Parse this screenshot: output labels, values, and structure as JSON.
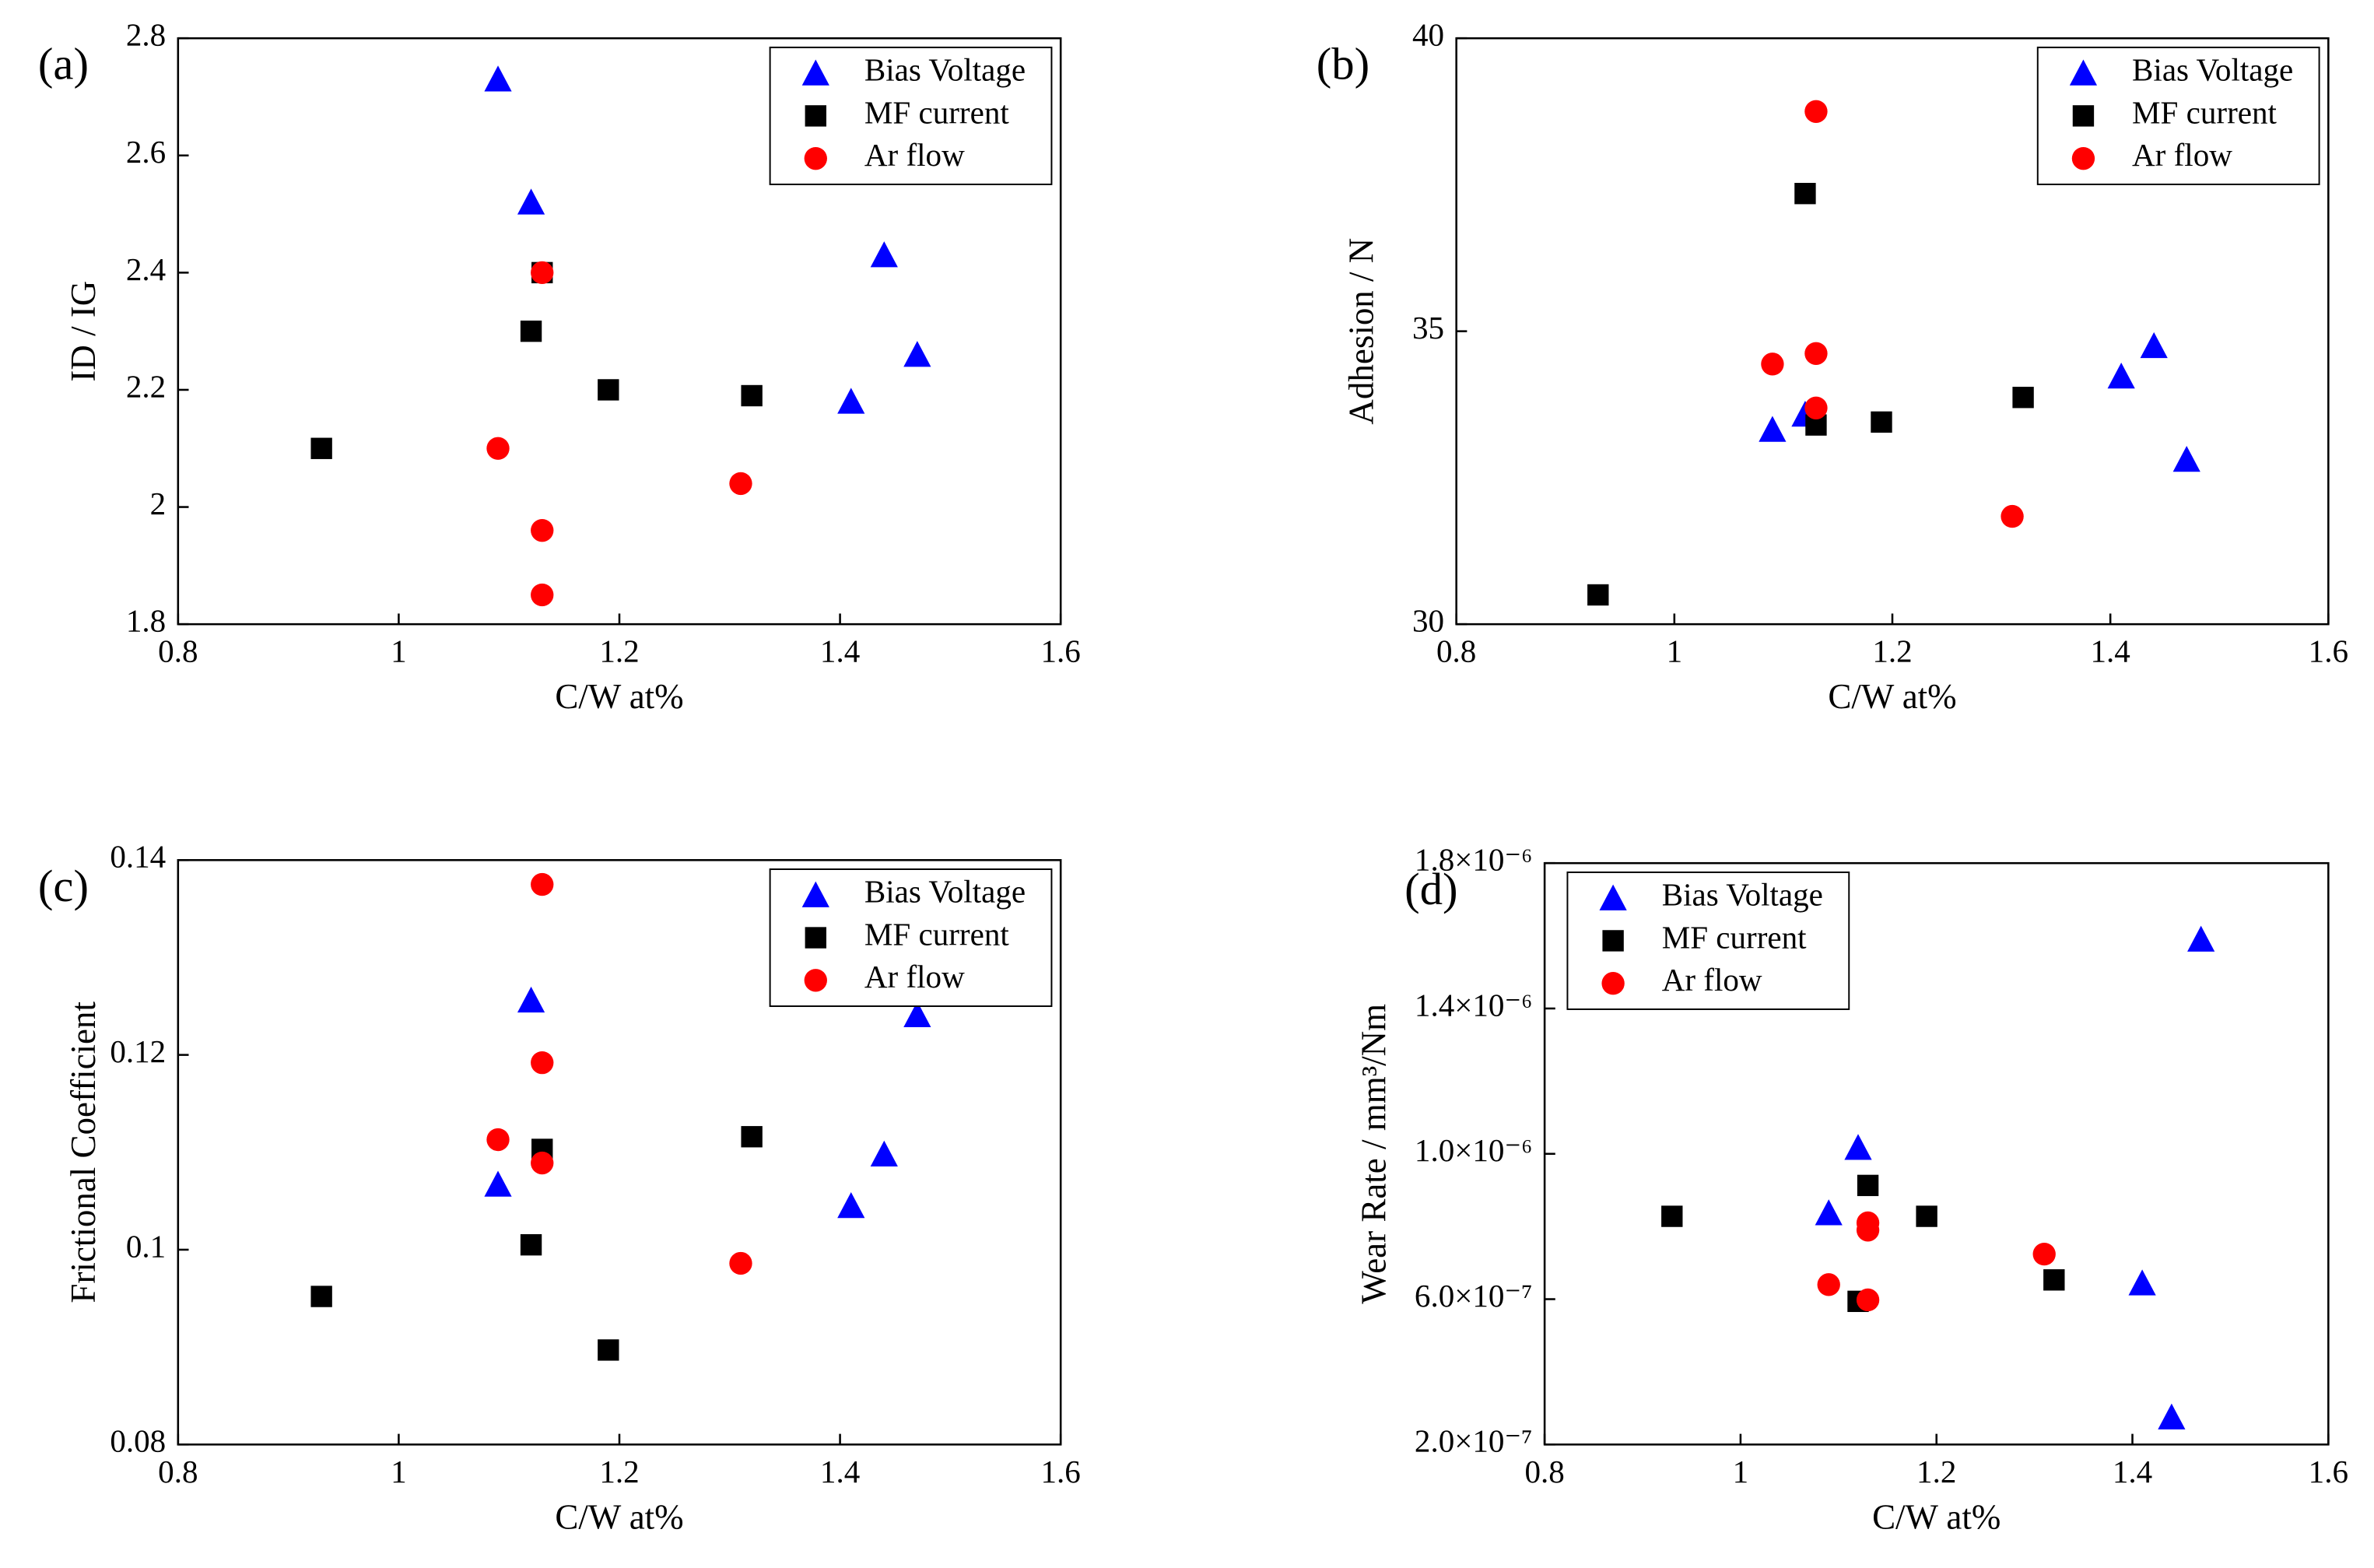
{
  "chart_data": [
    {
      "type": "scatter",
      "panel_label": "(a)",
      "xlabel": "C/W at%",
      "ylabel": "ID / IG",
      "xlim": [
        0.8,
        1.6
      ],
      "xticks": [
        0.8,
        1.0,
        1.2,
        1.4,
        1.6
      ],
      "ylim": [
        1.8,
        2.8
      ],
      "yticks": [
        1.8,
        2.0,
        2.2,
        2.4,
        2.6,
        2.8
      ],
      "legend": "upper right",
      "series": [
        {
          "name": "Bias Voltage",
          "color": "#0000ff",
          "marker": "triangle",
          "x": [
            1.09,
            1.12,
            1.41,
            1.44,
            1.47
          ],
          "values": [
            2.73,
            2.52,
            2.18,
            2.43,
            2.26
          ]
        },
        {
          "name": "MF current",
          "color": "#000000",
          "marker": "square",
          "x": [
            0.93,
            1.12,
            1.13,
            1.19,
            1.32
          ],
          "values": [
            2.1,
            2.3,
            2.4,
            2.2,
            2.19
          ]
        },
        {
          "name": "Ar flow",
          "color": "#ff0000",
          "marker": "circle",
          "x": [
            1.09,
            1.13,
            1.13,
            1.13,
            1.31
          ],
          "values": [
            2.1,
            2.4,
            1.96,
            1.85,
            2.04
          ]
        }
      ]
    },
    {
      "type": "scatter",
      "panel_label": "(b)",
      "xlabel": "C/W at%",
      "ylabel": "Adhesion / N",
      "xlim": [
        0.8,
        1.6
      ],
      "xticks": [
        0.8,
        1.0,
        1.2,
        1.4,
        1.6
      ],
      "ylim": [
        30,
        40
      ],
      "yticks": [
        30,
        35,
        40
      ],
      "legend": "upper right",
      "series": [
        {
          "name": "Bias Voltage",
          "color": "#0000ff",
          "marker": "triangle",
          "x": [
            1.09,
            1.12,
            1.41,
            1.44,
            1.47
          ],
          "values": [
            33.32,
            33.58,
            34.23,
            34.75,
            32.81
          ]
        },
        {
          "name": "MF current",
          "color": "#000000",
          "marker": "square",
          "x": [
            0.93,
            1.12,
            1.13,
            1.19,
            1.32
          ],
          "values": [
            30.5,
            37.35,
            33.4,
            33.45,
            33.87
          ]
        },
        {
          "name": "Ar flow",
          "color": "#ff0000",
          "marker": "circle",
          "x": [
            1.09,
            1.13,
            1.13,
            1.13,
            1.31
          ],
          "values": [
            34.44,
            38.75,
            34.62,
            33.69,
            31.84
          ]
        }
      ]
    },
    {
      "type": "scatter",
      "panel_label": "(c)",
      "xlabel": "C/W at%",
      "ylabel": "Frictional Coefficient",
      "xlim": [
        0.8,
        1.6
      ],
      "xticks": [
        0.8,
        1.0,
        1.2,
        1.4,
        1.6
      ],
      "ylim": [
        0.08,
        0.14
      ],
      "yticks": [
        0.08,
        0.1,
        0.12,
        0.14
      ],
      "legend": "upper right",
      "series": [
        {
          "name": "Bias Voltage",
          "color": "#0000ff",
          "marker": "triangle",
          "x": [
            1.09,
            1.12,
            1.41,
            1.44,
            1.47
          ],
          "values": [
            0.1067,
            0.1256,
            0.1045,
            0.1098,
            0.1241
          ]
        },
        {
          "name": "MF current",
          "color": "#000000",
          "marker": "square",
          "x": [
            0.93,
            1.12,
            1.13,
            1.19,
            1.32
          ],
          "values": [
            0.0952,
            0.1005,
            0.1103,
            0.0897,
            0.1116
          ]
        },
        {
          "name": "Ar flow",
          "color": "#ff0000",
          "marker": "circle",
          "x": [
            1.09,
            1.13,
            1.13,
            1.13,
            1.31
          ],
          "values": [
            0.1113,
            0.1375,
            0.1192,
            0.1089,
            0.0986
          ]
        }
      ]
    },
    {
      "type": "scatter",
      "panel_label": "(d)",
      "xlabel": "C/W at%",
      "ylabel": "Wear Rate / mm³/Nm",
      "xlim": [
        0.8,
        1.6
      ],
      "xticks": [
        0.8,
        1.0,
        1.2,
        1.4,
        1.6
      ],
      "ylim": [
        2e-07,
        1.8e-06
      ],
      "yticks": [
        {
          "value": 2e-07,
          "label": "2.0×10⁻⁷"
        },
        {
          "value": 6e-07,
          "label": "6.0×10⁻⁷"
        },
        {
          "value": 1e-06,
          "label": "1.0×10⁻⁶"
        },
        {
          "value": 1.4e-06,
          "label": "1.4×10⁻⁶"
        },
        {
          "value": 1.8e-06,
          "label": "1.8×10⁻⁶"
        }
      ],
      "legend": "upper left",
      "series": [
        {
          "name": "Bias Voltage",
          "color": "#0000ff",
          "marker": "triangle",
          "x": [
            1.09,
            1.12,
            1.41,
            1.44,
            1.47
          ],
          "values": [
            8.37e-07,
            1.017e-06,
            6.44e-07,
            2.75e-07,
            1.59e-06
          ]
        },
        {
          "name": "MF current",
          "color": "#000000",
          "marker": "square",
          "x": [
            0.93,
            1.12,
            1.13,
            1.19,
            1.32
          ],
          "values": [
            8.28e-07,
            5.94e-07,
            9.13e-07,
            8.28e-07,
            6.53e-07
          ]
        },
        {
          "name": "Ar flow",
          "color": "#ff0000",
          "marker": "circle",
          "x": [
            1.09,
            1.13,
            1.13,
            1.13,
            1.31
          ],
          "values": [
            6.4e-07,
            8.1e-07,
            7.9e-07,
            5.98e-07,
            7.24e-07
          ]
        }
      ]
    }
  ]
}
